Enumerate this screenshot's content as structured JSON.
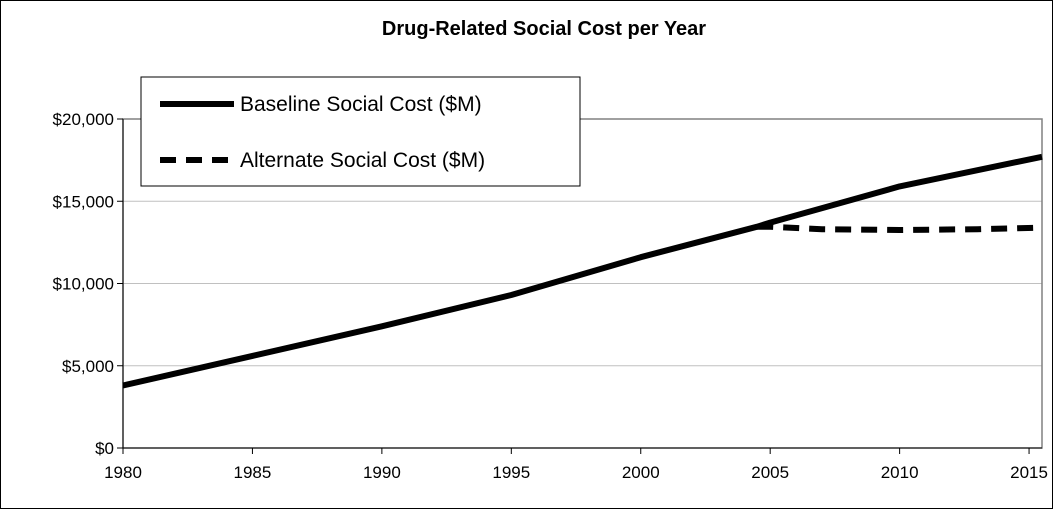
{
  "chart_data": {
    "type": "line",
    "title": "Drug-Related Social Cost per Year",
    "xlabel": "",
    "ylabel": "",
    "xlim": [
      1980,
      2015.5
    ],
    "ylim": [
      0,
      20000
    ],
    "x_ticks": [
      "1980",
      "1985",
      "1990",
      "1995",
      "2000",
      "2005",
      "2010",
      "2015"
    ],
    "x_tick_values": [
      1980,
      1985,
      1990,
      1995,
      2000,
      2005,
      2010,
      2015
    ],
    "y_ticks": [
      "$0",
      "$5,000",
      "$10,000",
      "$15,000",
      "$20,000"
    ],
    "y_tick_values": [
      0,
      5000,
      10000,
      15000,
      20000
    ],
    "grid": true,
    "legend_position": "top-left",
    "series": [
      {
        "name": "Baseline Social Cost ($M)",
        "style": "solid",
        "color": "#000000",
        "x": [
          1980,
          1985,
          1990,
          1995,
          2000,
          2004.5,
          2005,
          2010,
          2015.5
        ],
        "values": [
          3800,
          5600,
          7400,
          9300,
          11600,
          13450,
          13700,
          15900,
          17700
        ]
      },
      {
        "name": "Alternate Social Cost ($M)",
        "style": "dashed",
        "color": "#000000",
        "x": [
          2004.5,
          2005,
          2007,
          2010,
          2013,
          2015.5
        ],
        "values": [
          13450,
          13450,
          13300,
          13250,
          13300,
          13400
        ]
      }
    ]
  }
}
